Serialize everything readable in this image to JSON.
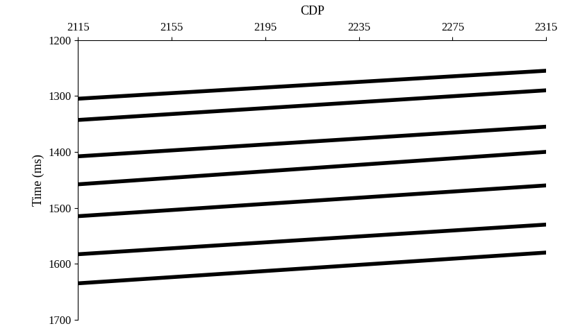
{
  "chart_data": {
    "type": "line",
    "x_label": "CDP",
    "y_label": "Time (ms)",
    "x": [
      2115,
      2315
    ],
    "series": [
      {
        "color": "#000000",
        "values": [
          1305,
          1255
        ]
      },
      {
        "color": "#000000",
        "values": [
          1343,
          1290
        ]
      },
      {
        "color": "#000000",
        "values": [
          1408,
          1355
        ]
      },
      {
        "color": "#000000",
        "values": [
          1458,
          1400
        ]
      },
      {
        "color": "#000000",
        "values": [
          1515,
          1460
        ]
      },
      {
        "color": "#000000",
        "values": [
          1583,
          1530
        ]
      },
      {
        "color": "#000000",
        "values": [
          1635,
          1580
        ]
      }
    ],
    "xlim": [
      2115,
      2315
    ],
    "xticks": [
      2115,
      2155,
      2195,
      2235,
      2275,
      2315
    ],
    "ylim": [
      1700,
      1200
    ],
    "yticks": [
      1200,
      1300,
      1400,
      1500,
      1600,
      1700
    ],
    "grid": false
  }
}
